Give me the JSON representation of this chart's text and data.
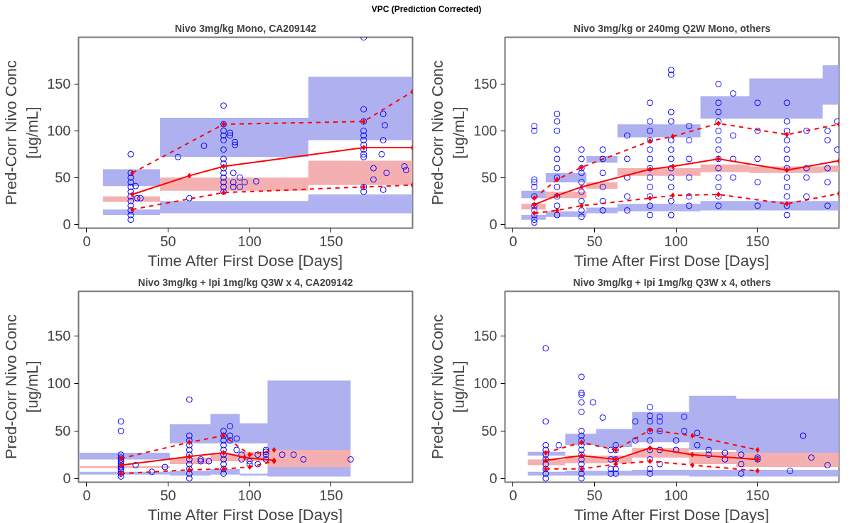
{
  "chart_data": [
    {
      "type": "other",
      "title": "VPC (Prediction Corrected)"
    },
    {
      "type": "scatter",
      "title": "Nivo 3mg/kg Mono, CA209142",
      "xlabel": "Time After First Dose [Days]",
      "ylabel": "Pred-Corr Nivo Conc\n[ug/mL]",
      "xlim": [
        -5,
        200
      ],
      "ylim": [
        -4,
        200
      ],
      "xticks": [
        0,
        50,
        100,
        150
      ],
      "yticks": [
        0,
        50,
        100,
        150
      ],
      "grid": false,
      "series": [
        {
          "type": "area",
          "color": "#aeb0f0",
          "x": [
            10,
            45,
            45,
            136,
            136,
            200
          ],
          "values": [
            null,
            null,
            null,
            null,
            null,
            null
          ],
          "lower": [
            41,
            41,
            72,
            72,
            90,
            90
          ],
          "upper": [
            59,
            59,
            114,
            114,
            158,
            158
          ]
        },
        {
          "type": "area",
          "color": "#f4b0b0",
          "x": [
            10,
            45,
            45,
            136,
            136,
            200
          ],
          "values": [
            null,
            null,
            null,
            null,
            null,
            null
          ],
          "lower": [
            24,
            24,
            36,
            36,
            42,
            42
          ],
          "upper": [
            30,
            30,
            50,
            50,
            68,
            68
          ]
        },
        {
          "type": "area",
          "color": "#b0b2f1",
          "x": [
            10,
            45,
            45,
            136,
            136,
            200
          ],
          "values": [
            null,
            null,
            null,
            null,
            null,
            null
          ],
          "lower": [
            10,
            10,
            12,
            12,
            12,
            12
          ],
          "upper": [
            16,
            16,
            25,
            25,
            32,
            32
          ]
        },
        {
          "type": "scatter",
          "color": "#0000ff",
          "marker": "circle",
          "x": [
            27,
            27,
            27,
            27,
            27,
            27,
            27,
            27,
            27,
            27,
            27,
            27,
            30,
            31,
            33,
            56,
            63,
            72,
            84,
            84,
            84,
            84,
            84,
            84,
            84,
            84,
            84,
            84,
            84,
            84,
            84,
            84,
            88,
            88,
            91,
            91,
            90,
            90,
            90,
            94,
            94,
            97,
            104,
            170,
            170,
            170,
            170,
            170,
            170,
            170,
            170,
            170,
            170,
            170,
            170,
            182,
            183,
            182,
            181,
            176,
            176,
            184,
            195,
            196,
            182
          ],
          "values": [
            5,
            10,
            15,
            20,
            25,
            30,
            35,
            40,
            45,
            50,
            55,
            75,
            41,
            28,
            28,
            72,
            28,
            84,
            35,
            40,
            45,
            50,
            55,
            60,
            65,
            70,
            80,
            90,
            95,
            100,
            107,
            127,
            95,
            98,
            88,
            85,
            55,
            45,
            40,
            50,
            40,
            45,
            46,
            200,
            123,
            110,
            100,
            95,
            90,
            85,
            80,
            75,
            72,
            40,
            35,
            118,
            106,
            90,
            75,
            60,
            48,
            55,
            62,
            58,
            37
          ]
        },
        {
          "type": "line",
          "color": "#ff0000",
          "line_style": "solid",
          "marker": "diamond",
          "x": [
            28,
            63,
            84,
            170,
            200
          ],
          "values": [
            32,
            52,
            62,
            82,
            82
          ]
        },
        {
          "type": "line",
          "color": "#ff0000",
          "line_style": "dashed",
          "marker": "diamond",
          "x": [
            28,
            84,
            170,
            200
          ],
          "values": [
            55,
            107,
            110,
            142
          ]
        },
        {
          "type": "line",
          "color": "#ff0000",
          "line_style": "dashed",
          "marker": "diamond",
          "x": [
            28,
            84,
            170,
            200
          ],
          "values": [
            16,
            34,
            40,
            42
          ]
        }
      ]
    },
    {
      "type": "scatter",
      "title": "Nivo 3mg/kg or 240mg Q2W Mono, others",
      "xlabel": "Time After First Dose [Days]",
      "ylabel": "Pred-Corr Nivo Conc\n[ug/mL]",
      "xlim": [
        -5,
        200
      ],
      "ylim": [
        -4,
        200
      ],
      "xticks": [
        0,
        50,
        100,
        150
      ],
      "yticks": [
        0,
        50,
        100,
        150
      ],
      "grid": false,
      "series": [
        {
          "type": "area",
          "color": "#aeb0f0",
          "x": [
            5,
            20,
            20,
            45,
            45,
            64,
            64,
            115,
            115,
            145,
            145,
            190,
            190,
            200
          ],
          "values": [
            null,
            null,
            null,
            null,
            null,
            null,
            null,
            null,
            null,
            null,
            null,
            null,
            null,
            null
          ],
          "lower": [
            28,
            28,
            45,
            45,
            66,
            66,
            93,
            93,
            113,
            113,
            113,
            113,
            128,
            128
          ],
          "upper": [
            36,
            36,
            55,
            55,
            73,
            73,
            107,
            107,
            137,
            137,
            156,
            156,
            170,
            170
          ]
        },
        {
          "type": "area",
          "color": "#f4b0b0",
          "x": [
            5,
            20,
            20,
            45,
            45,
            64,
            64,
            115,
            115,
            145,
            145,
            190,
            190,
            200
          ],
          "values": [
            null,
            null,
            null,
            null,
            null,
            null,
            null,
            null,
            null,
            null,
            null,
            null,
            null,
            null
          ],
          "lower": [
            16,
            16,
            28,
            28,
            38,
            38,
            52,
            52,
            56,
            56,
            55,
            55,
            56,
            56
          ],
          "upper": [
            22,
            22,
            35,
            35,
            45,
            45,
            60,
            60,
            64,
            64,
            62,
            62,
            63,
            63
          ]
        },
        {
          "type": "area",
          "color": "#b0b2f1",
          "x": [
            5,
            20,
            20,
            45,
            45,
            64,
            64,
            115,
            115,
            145,
            145,
            190,
            190,
            200
          ],
          "values": [
            null,
            null,
            null,
            null,
            null,
            null,
            null,
            null,
            null,
            null,
            null,
            null,
            null,
            null
          ],
          "lower": [
            5,
            5,
            8,
            8,
            12,
            12,
            14,
            14,
            15,
            15,
            15,
            15,
            15,
            15
          ],
          "upper": [
            10,
            10,
            14,
            14,
            18,
            18,
            22,
            22,
            25,
            25,
            25,
            25,
            25,
            25
          ]
        },
        {
          "type": "scatter",
          "color": "#0000ff",
          "marker": "circle",
          "x": [
            13,
            13,
            13,
            13,
            13,
            13,
            13,
            13,
            13,
            13,
            13,
            27,
            27,
            27,
            27,
            27,
            27,
            27,
            27,
            27,
            27,
            27,
            42,
            42,
            42,
            42,
            42,
            42,
            42,
            42,
            42,
            55,
            55,
            55,
            55,
            55,
            55,
            70,
            70,
            70,
            70,
            70,
            84,
            84,
            84,
            84,
            84,
            84,
            84,
            84,
            84,
            84,
            84,
            84,
            97,
            97,
            97,
            97,
            97,
            97,
            97,
            97,
            97,
            97,
            97,
            97,
            108,
            108,
            108,
            108,
            108,
            108,
            126,
            126,
            126,
            126,
            126,
            126,
            126,
            126,
            126,
            126,
            126,
            126,
            126,
            135,
            135,
            135,
            135,
            150,
            150,
            150,
            150,
            150,
            168,
            168,
            168,
            168,
            168,
            168,
            168,
            168,
            168,
            168,
            168,
            168,
            180,
            180,
            180,
            180,
            193,
            193,
            193,
            193,
            193,
            199,
            199
          ],
          "values": [
            105,
            100,
            48,
            45,
            40,
            30,
            20,
            15,
            10,
            5,
            2,
            118,
            110,
            100,
            80,
            70,
            60,
            50,
            40,
            30,
            20,
            10,
            80,
            70,
            60,
            55,
            45,
            35,
            25,
            15,
            8,
            80,
            70,
            55,
            40,
            25,
            15,
            95,
            70,
            50,
            30,
            15,
            130,
            110,
            100,
            90,
            80,
            70,
            60,
            50,
            40,
            30,
            20,
            10,
            165,
            160,
            120,
            110,
            90,
            80,
            70,
            60,
            50,
            40,
            25,
            10,
            105,
            90,
            70,
            50,
            30,
            20,
            150,
            130,
            120,
            110,
            100,
            90,
            80,
            70,
            60,
            50,
            40,
            30,
            20,
            140,
            95,
            70,
            50,
            130,
            100,
            70,
            45,
            20,
            130,
            110,
            100,
            90,
            80,
            70,
            60,
            50,
            40,
            30,
            20,
            10,
            100,
            60,
            50,
            30,
            100,
            90,
            60,
            45,
            20,
            110,
            80
          ]
        },
        {
          "type": "line",
          "color": "#ff0000",
          "line_style": "solid",
          "marker": "diamond",
          "x": [
            13,
            27,
            42,
            84,
            98,
            126,
            168,
            200
          ],
          "values": [
            21,
            31,
            40,
            59,
            62,
            70,
            58,
            68
          ]
        },
        {
          "type": "line",
          "color": "#ff0000",
          "line_style": "dashed",
          "marker": "diamond",
          "x": [
            13,
            27,
            42,
            84,
            98,
            126,
            168,
            200
          ],
          "values": [
            28,
            48,
            61,
            89,
            94,
            108,
            96,
            107
          ]
        },
        {
          "type": "line",
          "color": "#ff0000",
          "line_style": "dashed",
          "marker": "diamond",
          "x": [
            13,
            27,
            42,
            84,
            98,
            126,
            168,
            200
          ],
          "values": [
            12,
            15,
            20,
            28,
            31,
            32,
            22,
            33
          ]
        }
      ]
    },
    {
      "type": "scatter",
      "title": "Nivo 3mg/kg + Ipi 1mg/kg Q3W x 4, CA209142",
      "xlabel": "Time After First Dose [Days]",
      "ylabel": "Pred-Corr Nivo Conc\n[ug/mL]",
      "xlim": [
        -5,
        200
      ],
      "ylim": [
        -4,
        197
      ],
      "xticks": [
        0,
        50,
        100,
        150
      ],
      "yticks": [
        0,
        50,
        100,
        150
      ],
      "grid": false,
      "series": [
        {
          "type": "area",
          "color": "#aeb0f0",
          "x": [
            -5,
            51,
            51,
            76,
            76,
            94,
            94,
            111,
            111,
            162
          ],
          "values": [
            null,
            null,
            null,
            null,
            null,
            null,
            null,
            null,
            null,
            null
          ],
          "lower": [
            20,
            20,
            37,
            37,
            37,
            37,
            37,
            37,
            30,
            30
          ],
          "upper": [
            27,
            27,
            57,
            57,
            68,
            68,
            58,
            58,
            103,
            103
          ]
        },
        {
          "type": "area",
          "color": "#f4b0b0",
          "x": [
            -5,
            51,
            51,
            76,
            76,
            94,
            94,
            111,
            111,
            162
          ],
          "values": [
            null,
            null,
            null,
            null,
            null,
            null,
            null,
            null,
            null,
            null
          ],
          "lower": [
            11,
            11,
            15,
            15,
            18,
            18,
            18,
            18,
            12,
            12
          ],
          "upper": [
            13,
            13,
            22,
            22,
            26,
            26,
            28,
            28,
            30,
            30
          ]
        },
        {
          "type": "area",
          "color": "#b0b2f1",
          "x": [
            -5,
            51,
            51,
            76,
            76,
            94,
            94,
            111,
            111,
            162
          ],
          "values": [
            null,
            null,
            null,
            null,
            null,
            null,
            null,
            null,
            null,
            null
          ],
          "lower": [
            4,
            4,
            3,
            3,
            4,
            4,
            3,
            3,
            2,
            2
          ],
          "upper": [
            7,
            7,
            8,
            8,
            10,
            10,
            5,
            5,
            12,
            12
          ]
        },
        {
          "type": "scatter",
          "color": "#0000ff",
          "marker": "circle",
          "x": [
            21,
            21,
            21,
            21,
            21,
            21,
            21,
            21,
            21,
            21,
            21,
            21,
            21,
            30,
            40,
            48,
            63,
            63,
            63,
            63,
            63,
            63,
            63,
            63,
            63,
            63,
            63,
            70,
            70,
            75,
            84,
            84,
            84,
            84,
            84,
            84,
            84,
            84,
            84,
            84,
            88,
            88,
            88,
            92,
            92,
            95,
            95,
            100,
            100,
            105,
            105,
            110,
            110,
            110,
            110,
            120,
            127,
            133,
            162
          ],
          "values": [
            2,
            5,
            8,
            10,
            12,
            14,
            16,
            18,
            20,
            22,
            25,
            50,
            60,
            14,
            7,
            12,
            0,
            5,
            10,
            15,
            20,
            25,
            30,
            35,
            40,
            45,
            83,
            20,
            18,
            18,
            5,
            10,
            15,
            20,
            25,
            30,
            35,
            40,
            45,
            50,
            55,
            45,
            40,
            42,
            30,
            25,
            20,
            15,
            18,
            15,
            25,
            25,
            28,
            30,
            20,
            25,
            25,
            20,
            20
          ]
        },
        {
          "type": "line",
          "color": "#ff0000",
          "line_style": "solid",
          "marker": "diamond",
          "x": [
            21,
            63,
            84,
            97,
            115
          ],
          "values": [
            14,
            23,
            27,
            22,
            19
          ]
        },
        {
          "type": "line",
          "color": "#ff0000",
          "line_style": "dashed",
          "marker": "diamond",
          "x": [
            21,
            63,
            84,
            100,
            115
          ],
          "values": [
            21,
            38,
            45,
            25,
            30
          ]
        },
        {
          "type": "line",
          "color": "#ff0000",
          "line_style": "dashed",
          "marker": "diamond",
          "x": [
            21,
            63,
            84,
            100,
            115
          ],
          "values": [
            5,
            9,
            10,
            12,
            18
          ]
        }
      ]
    },
    {
      "type": "scatter",
      "title": "Nivo 3mg/kg + Ipi 1mg/kg Q3W x 4, others",
      "xlabel": "Time After First Dose [Days]",
      "ylabel": "Pred-Corr Nivo Conc\n[ug/mL]",
      "xlim": [
        -5,
        200
      ],
      "ylim": [
        -4,
        197
      ],
      "xticks": [
        0,
        50,
        100,
        150
      ],
      "yticks": [
        0,
        50,
        100,
        150
      ],
      "grid": false,
      "series": [
        {
          "type": "area",
          "color": "#aeb0f0",
          "x": [
            9,
            32,
            32,
            51,
            51,
            73,
            73,
            108,
            108,
            137,
            137,
            200
          ],
          "values": [
            null,
            null,
            null,
            null,
            null,
            null,
            null,
            null,
            null,
            null,
            null,
            null
          ],
          "lower": [
            24,
            24,
            35,
            35,
            33,
            33,
            38,
            38,
            30,
            30,
            27,
            27
          ],
          "upper": [
            28,
            28,
            47,
            47,
            52,
            52,
            70,
            70,
            87,
            87,
            84,
            84
          ]
        },
        {
          "type": "area",
          "color": "#f4b0b0",
          "x": [
            9,
            32,
            32,
            51,
            51,
            73,
            73,
            108,
            108,
            137,
            137,
            200
          ],
          "values": [
            null,
            null,
            null,
            null,
            null,
            null,
            null,
            null,
            null,
            null,
            null,
            null
          ],
          "lower": [
            14,
            14,
            16,
            16,
            16,
            16,
            22,
            22,
            15,
            15,
            12,
            12
          ],
          "upper": [
            20,
            20,
            24,
            24,
            24,
            24,
            32,
            32,
            28,
            28,
            27,
            27
          ]
        },
        {
          "type": "area",
          "color": "#b0b2f1",
          "x": [
            9,
            32,
            32,
            51,
            51,
            73,
            73,
            108,
            108,
            137,
            137,
            200
          ],
          "values": [
            null,
            null,
            null,
            null,
            null,
            null,
            null,
            null,
            null,
            null,
            null,
            null
          ],
          "lower": [
            3,
            3,
            3,
            3,
            3,
            3,
            3,
            3,
            2,
            2,
            2,
            2
          ],
          "upper": [
            7,
            7,
            8,
            8,
            8,
            8,
            9,
            9,
            9,
            9,
            9,
            9
          ]
        },
        {
          "type": "scatter",
          "color": "#0000ff",
          "marker": "circle",
          "x": [
            20,
            20,
            20,
            20,
            20,
            20,
            20,
            20,
            20,
            20,
            28,
            42,
            42,
            42,
            42,
            42,
            42,
            42,
            42,
            42,
            42,
            42,
            42,
            42,
            42,
            42,
            42,
            49,
            55,
            60,
            60,
            60,
            60,
            63,
            63,
            63,
            63,
            63,
            75,
            75,
            84,
            84,
            84,
            84,
            84,
            84,
            84,
            84,
            84,
            90,
            90,
            90,
            90,
            90,
            100,
            100,
            105,
            105,
            113,
            113,
            120,
            120,
            130,
            130,
            140,
            140,
            140,
            150,
            150,
            170,
            178,
            183,
            193
          ],
          "values": [
            0,
            5,
            10,
            15,
            20,
            25,
            30,
            35,
            60,
            137,
            35,
            0,
            5,
            10,
            15,
            20,
            25,
            30,
            35,
            40,
            45,
            50,
            70,
            80,
            88,
            90,
            107,
            80,
            64,
            5,
            10,
            20,
            30,
            5,
            10,
            20,
            30,
            35,
            60,
            40,
            5,
            10,
            20,
            30,
            40,
            50,
            60,
            66,
            75,
            65,
            60,
            50,
            30,
            15,
            30,
            40,
            65,
            50,
            48,
            35,
            30,
            25,
            20,
            27,
            5,
            15,
            25,
            20,
            22,
            8,
            45,
            22,
            14
          ]
        },
        {
          "type": "line",
          "color": "#ff0000",
          "line_style": "solid",
          "marker": "diamond",
          "x": [
            20,
            42,
            63,
            84,
            110,
            150
          ],
          "values": [
            19,
            24,
            20,
            32,
            25,
            20
          ]
        },
        {
          "type": "line",
          "color": "#ff0000",
          "line_style": "dashed",
          "marker": "diamond",
          "x": [
            20,
            42,
            63,
            84,
            110,
            150
          ],
          "values": [
            27,
            38,
            30,
            51,
            45,
            30
          ]
        },
        {
          "type": "line",
          "color": "#ff0000",
          "line_style": "dashed",
          "marker": "diamond",
          "x": [
            20,
            42,
            63,
            84,
            110,
            150
          ],
          "values": [
            10,
            10,
            15,
            18,
            14,
            8
          ]
        }
      ]
    }
  ]
}
